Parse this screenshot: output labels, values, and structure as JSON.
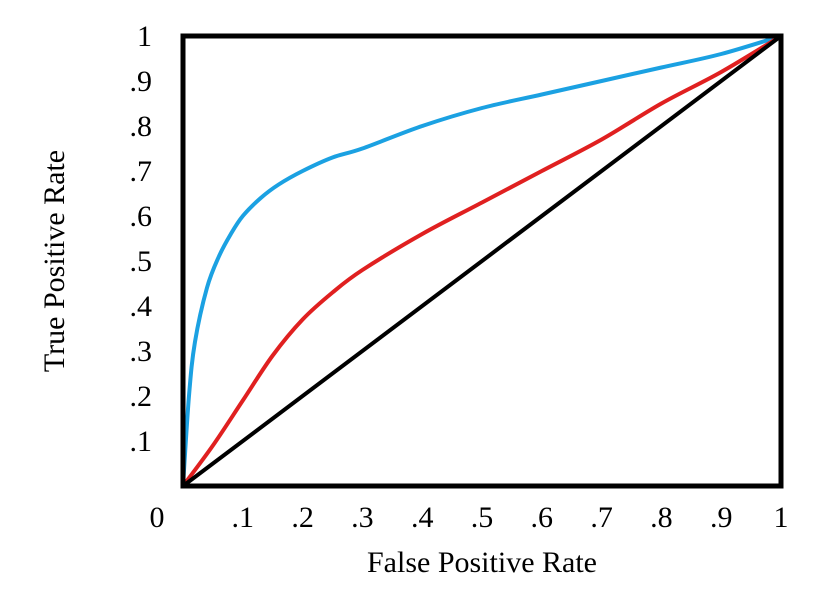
{
  "chart_data": {
    "type": "line",
    "title": "",
    "xlabel": "False Positive Rate",
    "ylabel": "True Positive Rate",
    "xlim": [
      0,
      1
    ],
    "ylim": [
      0,
      1
    ],
    "grid": false,
    "x_tick_labels": [
      ".1",
      ".2",
      ".3",
      ".4",
      ".5",
      ".6",
      ".7",
      ".8",
      ".9",
      "1"
    ],
    "y_tick_labels": [
      ".1",
      ".2",
      ".3",
      ".4",
      ".5",
      ".6",
      ".7",
      ".8",
      ".9",
      "1"
    ],
    "origin_label": "0",
    "series": [
      {
        "color": "#1ba1e2",
        "x": [
          0,
          0.01,
          0.02,
          0.04,
          0.06,
          0.08,
          0.1,
          0.13,
          0.16,
          0.2,
          0.25,
          0.3,
          0.4,
          0.5,
          0.6,
          0.7,
          0.8,
          0.9,
          1.0
        ],
        "y": [
          0,
          0.2,
          0.32,
          0.44,
          0.51,
          0.56,
          0.6,
          0.64,
          0.67,
          0.7,
          0.73,
          0.75,
          0.8,
          0.84,
          0.87,
          0.9,
          0.93,
          0.96,
          1.0
        ]
      },
      {
        "color": "#e02020",
        "x": [
          0,
          0.05,
          0.1,
          0.15,
          0.2,
          0.25,
          0.3,
          0.4,
          0.5,
          0.6,
          0.7,
          0.8,
          0.9,
          1.0
        ],
        "y": [
          0,
          0.09,
          0.19,
          0.29,
          0.37,
          0.43,
          0.48,
          0.56,
          0.63,
          0.7,
          0.77,
          0.85,
          0.92,
          1.0
        ]
      },
      {
        "color": "#000000",
        "x": [
          0,
          1
        ],
        "y": [
          0,
          1
        ]
      }
    ]
  }
}
